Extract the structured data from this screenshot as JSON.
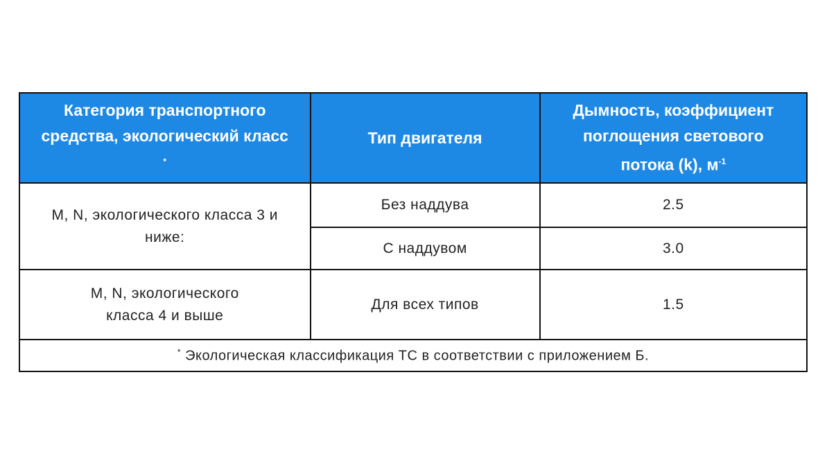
{
  "table": {
    "headers": [
      {
        "text": "Категория транспортного средства, экологический класс",
        "sup": "*"
      },
      {
        "text": "Тип двигателя",
        "sup": ""
      },
      {
        "text": "Дымность, коэффициент поглощения светового потока (k), м",
        "sup": "-1"
      }
    ],
    "groups": [
      {
        "category": "M, N, экологического класса 3 и ниже:",
        "rows": [
          {
            "engine": "Без наддува",
            "value": "2.5"
          },
          {
            "engine": "С наддувом",
            "value": "3.0"
          }
        ]
      },
      {
        "category": "M, N, экологического класса 4 и выше",
        "rows": [
          {
            "engine": "Для всех типов",
            "value": "1.5"
          }
        ]
      }
    ],
    "footnote": {
      "mark": "*",
      "text": " Экологическая классификация ТС в соответствии с приложением Б."
    },
    "header_color": "#1e88e5"
  }
}
